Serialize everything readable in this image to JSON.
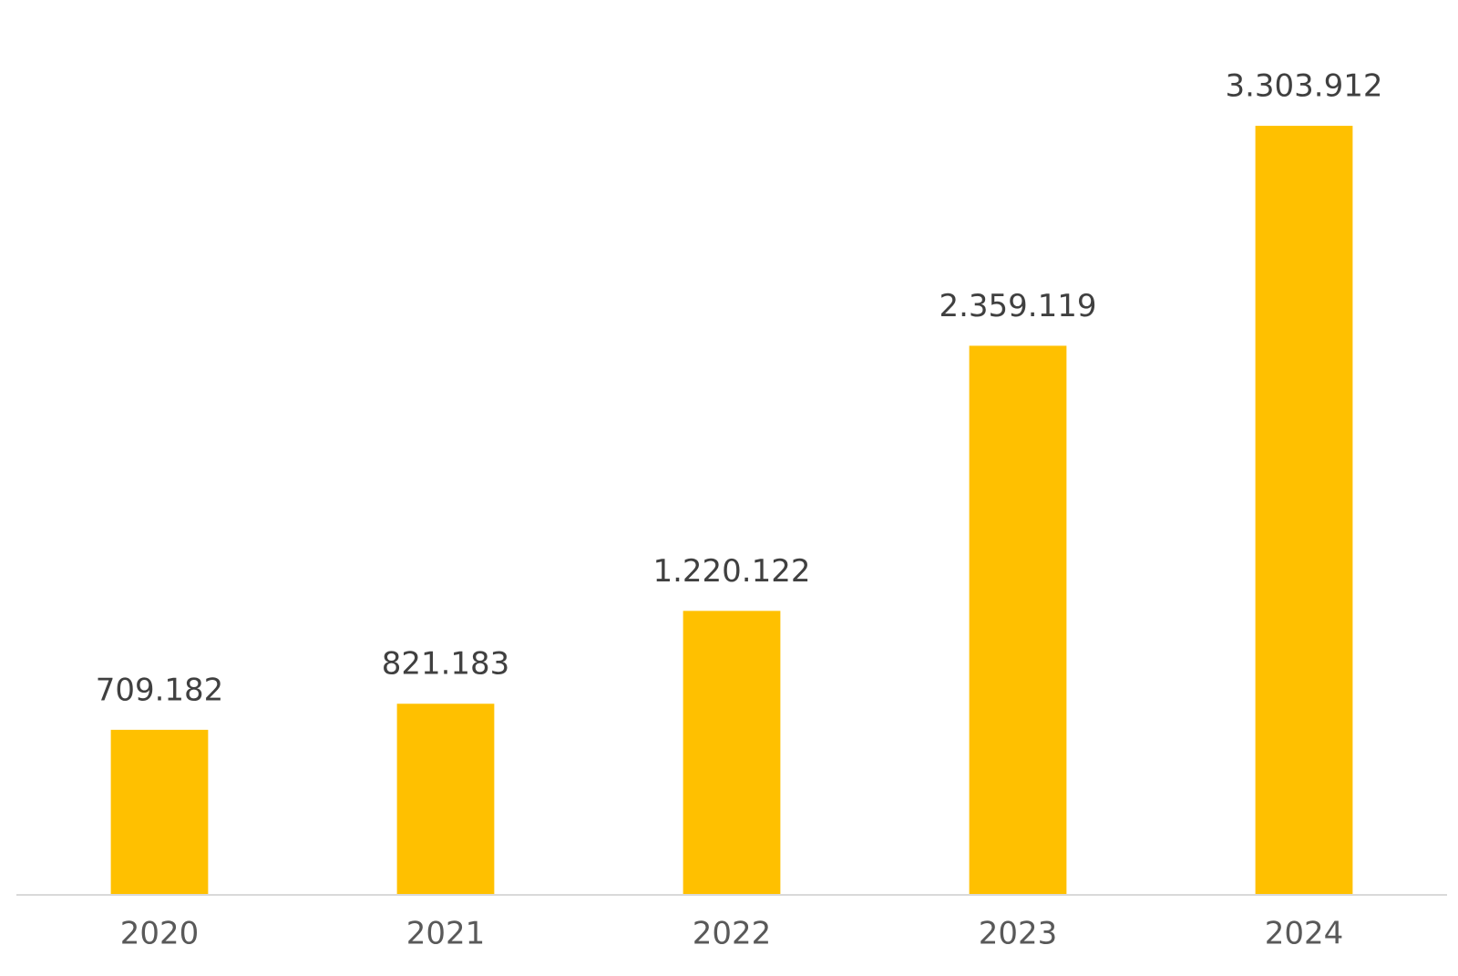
{
  "chart_data": {
    "type": "bar",
    "categories": [
      "2020",
      "2021",
      "2022",
      "2023",
      "2024"
    ],
    "values": [
      709182,
      821183,
      1220122,
      2359119,
      3303912
    ],
    "value_labels": [
      "709.182",
      "821.183",
      "1.220.122",
      "2.359.119",
      "3.303.912"
    ],
    "color": "#ffc000",
    "ylim": [
      0,
      3500000
    ]
  }
}
